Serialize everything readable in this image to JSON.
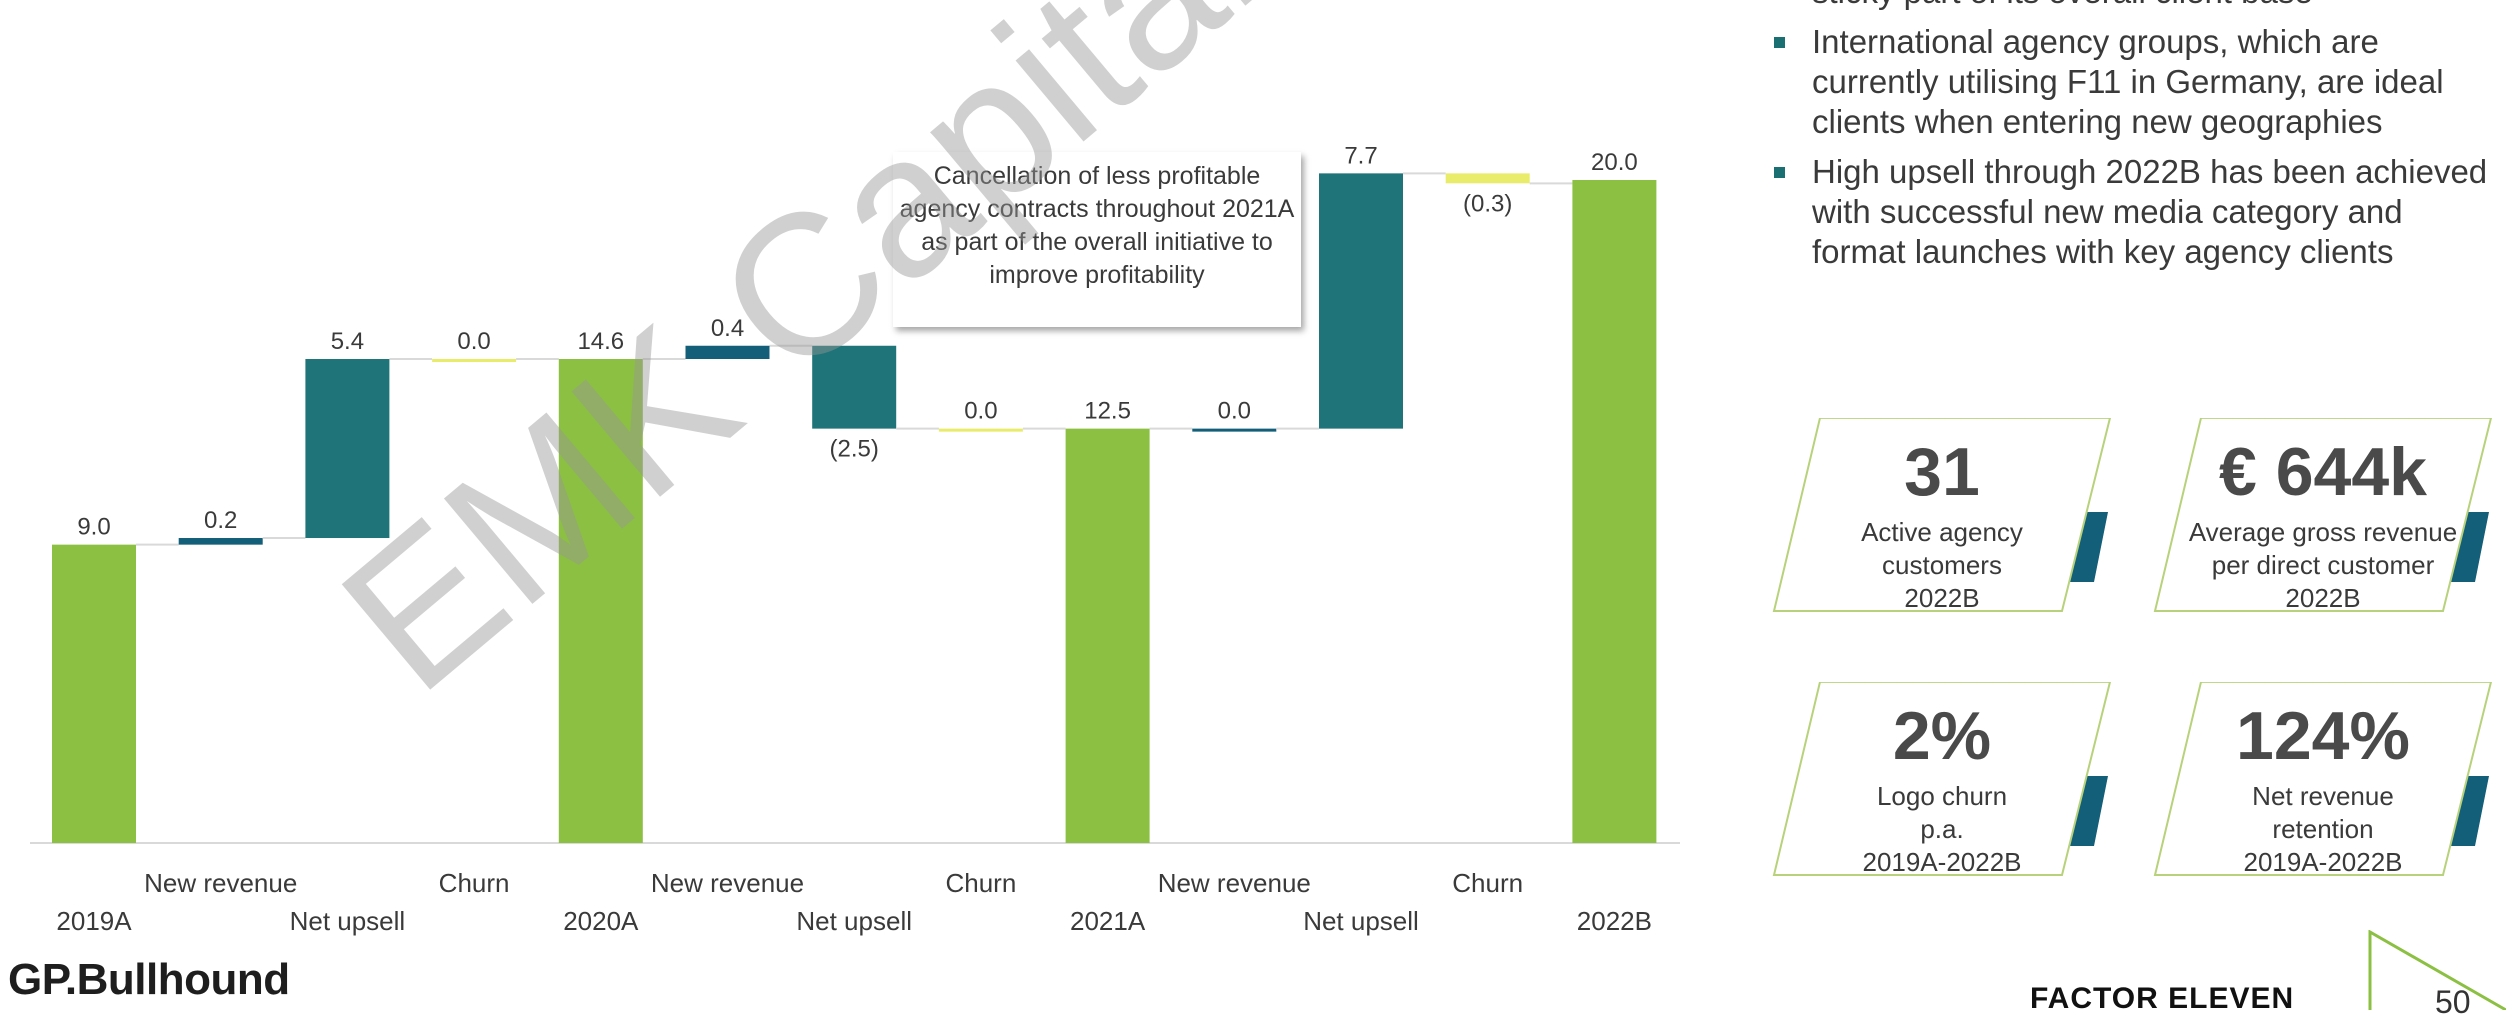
{
  "chart_data": {
    "type": "bar",
    "subtype": "waterfall",
    "categories": [
      "2019A",
      "New revenue",
      "Net upsell",
      "Churn",
      "2020A",
      "New revenue",
      "Net upsell",
      "Churn",
      "2021A",
      "New revenue",
      "Net upsell",
      "Churn",
      "2022B"
    ],
    "values": [
      9.0,
      0.2,
      5.4,
      0.0,
      14.6,
      0.4,
      -2.5,
      0.0,
      12.5,
      0.0,
      7.7,
      -0.3,
      20.0
    ],
    "value_labels": [
      "9.0",
      "0.2",
      "5.4",
      "0.0",
      "14.6",
      "0.4",
      "(2.5)",
      "0.0",
      "12.5",
      "0.0",
      "7.7",
      "(0.3)",
      "20.0"
    ],
    "kinds": [
      "total",
      "new",
      "upsell",
      "churn",
      "total",
      "new",
      "upsell",
      "churn",
      "total",
      "new",
      "upsell",
      "churn",
      "total"
    ],
    "ylim": [
      0,
      20.5
    ],
    "grid": false,
    "legend": "none",
    "colors": {
      "total": "#8cc043",
      "new": "#135e78",
      "upsell": "#1e7478",
      "churn": "#e9ec6a",
      "connector": "#d9d9d9"
    }
  },
  "callout": {
    "text": "Cancellation of less profitable agency contracts throughout 2021A as part of the overall initiative to improve profitability"
  },
  "bullets": [
    "sticky part of its overall client base",
    "International agency groups, which are currently utilising F11 in Germany, are ideal clients when entering new geographies",
    "High upsell through 2022B has been achieved with successful new media category and format launches with key agency clients"
  ],
  "kpis": [
    {
      "value": "31",
      "label": [
        "Active agency",
        "customers",
        "2022B"
      ]
    },
    {
      "value": "€ 644k",
      "label": [
        "Average gross revenue",
        "per direct customer",
        "2022B"
      ]
    },
    {
      "value": "2%",
      "label": [
        "Logo churn",
        "p.a.",
        "2019A-2022B"
      ]
    },
    {
      "value": "124%",
      "label": [
        "Net revenue",
        "retention",
        "2019A-2022B"
      ]
    }
  ],
  "brand": {
    "left_logo": "GP.Bullhound",
    "right_logo": "FACTOR ELEVEN",
    "page_number": "50"
  },
  "watermark": "EMK Capital (Germany) GmbH",
  "accent_colors": {
    "teal": "#135e78",
    "green": "#8cc043"
  }
}
